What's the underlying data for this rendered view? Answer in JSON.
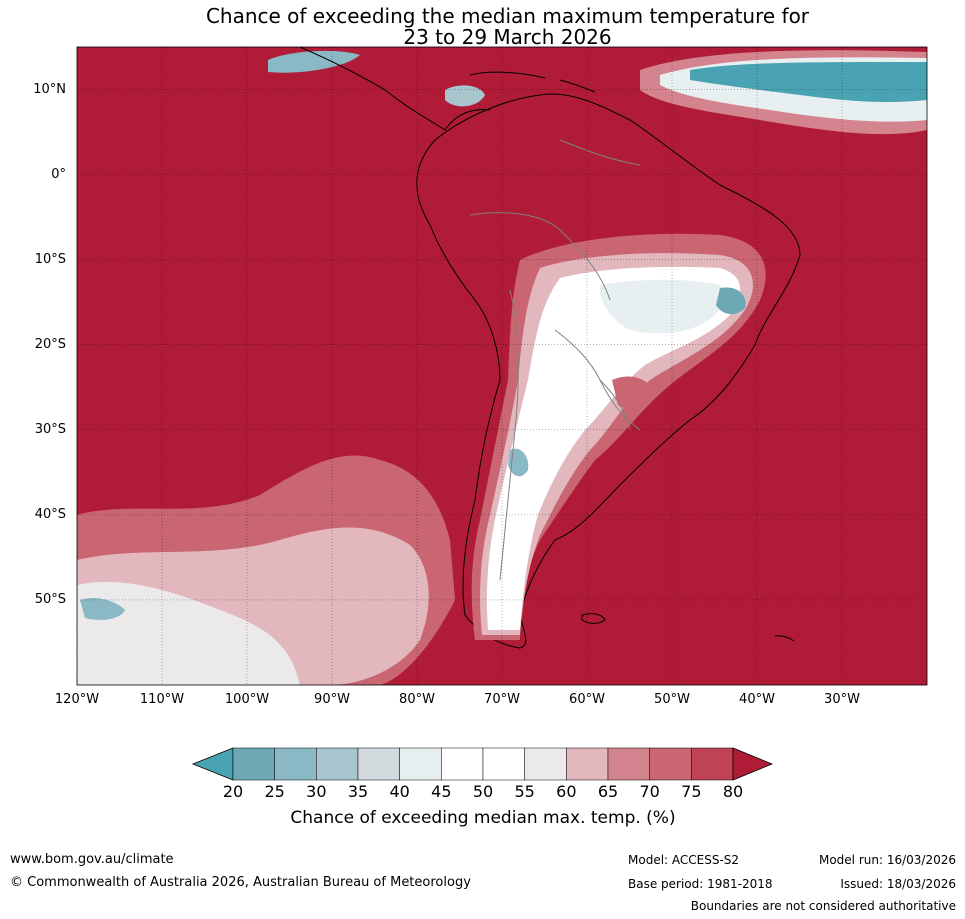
{
  "title": {
    "line1": "Chance of exceeding the median maximum temperature for",
    "line2": "23 to 29 March 2026"
  },
  "map": {
    "lon_range": [
      -120,
      -20
    ],
    "lat_range": [
      -60,
      15
    ],
    "lat_labels": [
      "10°N",
      "0°",
      "10°S",
      "20°S",
      "30°S",
      "40°S",
      "50°S"
    ],
    "lon_labels": [
      "120°W",
      "110°W",
      "100°W",
      "90°W",
      "80°W",
      "70°W",
      "60°W",
      "50°W",
      "40°W",
      "30°W"
    ],
    "colors": {
      "ocean_high": "#b01c37",
      "land_outline": "#000000",
      "border_outline": "#808080"
    }
  },
  "legend": {
    "ticks": [
      "20",
      "25",
      "30",
      "35",
      "40",
      "45",
      "50",
      "55",
      "60",
      "65",
      "70",
      "75",
      "80"
    ],
    "colors": [
      "#4aa3b3",
      "#6da9b5",
      "#8ab8c5",
      "#a9c6cf",
      "#d2dadd",
      "#e8eff1",
      "#ffffff",
      "#ffffff",
      "#ebe9ea",
      "#e2b8be",
      "#d4848e",
      "#c96672",
      "#c04354",
      "#b01c37"
    ],
    "title": "Chance of exceeding median max. temp. (%)"
  },
  "footer": {
    "url": "www.bom.gov.au/climate",
    "copyright": "© Commonwealth of Australia 2026, Australian Bureau of Meteorology",
    "model": "Model: ACCESS-S2",
    "base_period": "Base period: 1981-2018",
    "model_run": "Model run: 16/03/2026",
    "issued": "Issued: 18/03/2026",
    "disclaimer": "Boundaries are not considered authoritative"
  }
}
